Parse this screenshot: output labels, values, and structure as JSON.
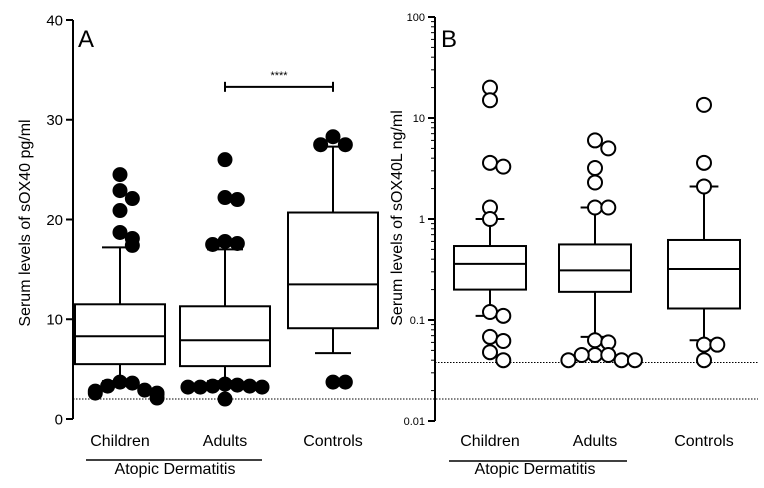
{
  "chart_data": [
    {
      "panel": "A",
      "type": "box",
      "scale": "linear",
      "ylabel": "Serum levels of sOX40 pg/ml",
      "ylim": [
        0,
        40
      ],
      "yticks": [
        0,
        10,
        20,
        30,
        40
      ],
      "categories": [
        "Children",
        "Adults",
        "Controls"
      ],
      "group_label": "Atopic Dermatitis",
      "group_spans": [
        "Children",
        "Adults"
      ],
      "detection_limit": 2.0,
      "boxes": [
        {
          "category": "Children",
          "whisker_low": 3.8,
          "q1": 5.5,
          "median": 8.3,
          "q3": 11.5,
          "whisker_high": 17.2
        },
        {
          "category": "Adults",
          "whisker_low": 3.8,
          "q1": 5.3,
          "median": 7.9,
          "q3": 11.3,
          "whisker_high": 17.0
        },
        {
          "category": "Controls",
          "whisker_low": 6.6,
          "q1": 9.1,
          "median": 13.5,
          "q3": 20.7,
          "whisker_high": 27.3
        }
      ],
      "outliers": [
        {
          "category": "Children",
          "values": [
            24.5,
            22.9,
            22.1,
            20.9,
            18.7,
            18.1,
            17.4,
            3.7,
            3.6,
            3.3,
            2.9,
            2.8,
            2.6,
            2.6,
            2.5,
            2.1
          ]
        },
        {
          "category": "Adults",
          "values": [
            26.0,
            22.2,
            22.0,
            17.8,
            17.6,
            17.5,
            3.5,
            3.4,
            3.3,
            3.3,
            3.2,
            3.2,
            3.2,
            2.0
          ]
        },
        {
          "category": "Controls",
          "values": [
            28.3,
            27.5,
            27.5,
            3.7,
            3.7
          ]
        }
      ],
      "significance": {
        "from": "Adults",
        "to": "Controls",
        "label": "****",
        "y": 33.3
      },
      "style": {
        "box_fill": "#ffffff",
        "point_fill": "#000000",
        "point_stroke": "#000000"
      }
    },
    {
      "panel": "B",
      "type": "box",
      "scale": "log",
      "ylabel": "Serum levels of sOX40L ng/ml",
      "ylim": [
        0.01,
        100
      ],
      "yticks": [
        0.01,
        0.1,
        1,
        10,
        100
      ],
      "ytick_labels": [
        "0.01",
        "0.1",
        "1",
        "10",
        "100"
      ],
      "categories": [
        "Children",
        "Adults",
        "Controls"
      ],
      "group_label": "Atopic Dermatitis",
      "group_spans": [
        "Children",
        "Adults"
      ],
      "detection_limit": 0.038,
      "boxes": [
        {
          "category": "Children",
          "whisker_low": 0.11,
          "q1": 0.2,
          "median": 0.36,
          "q3": 0.54,
          "whisker_high": 1.0
        },
        {
          "category": "Adults",
          "whisker_low": 0.068,
          "q1": 0.19,
          "median": 0.31,
          "q3": 0.56,
          "whisker_high": 1.3
        },
        {
          "category": "Controls",
          "whisker_low": 0.063,
          "q1": 0.13,
          "median": 0.32,
          "q3": 0.62,
          "whisker_high": 2.1
        }
      ],
      "outliers": [
        {
          "category": "Children",
          "values": [
            20,
            15,
            3.6,
            3.3,
            1.3,
            1.0,
            0.12,
            0.11,
            0.068,
            0.062,
            0.048,
            0.04
          ]
        },
        {
          "category": "Adults",
          "values": [
            6.0,
            5.0,
            3.2,
            2.3,
            1.3,
            1.3,
            0.063,
            0.06,
            0.045,
            0.045,
            0.045,
            0.04,
            0.04,
            0.04
          ]
        },
        {
          "category": "Controls",
          "values": [
            13.5,
            3.6,
            2.1,
            0.057,
            0.057,
            0.04
          ]
        }
      ],
      "style": {
        "box_fill": "#ffffff",
        "point_fill": "#ffffff",
        "point_stroke": "#000000"
      }
    }
  ]
}
